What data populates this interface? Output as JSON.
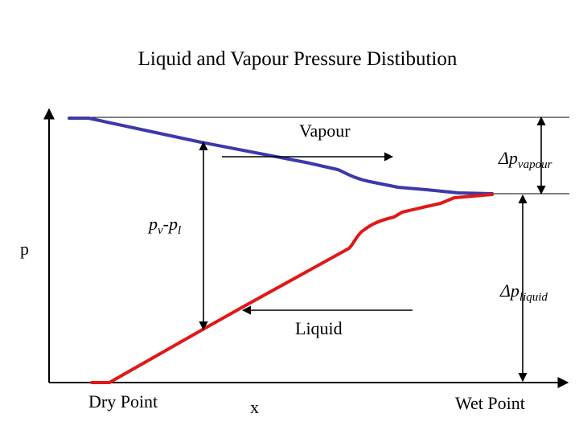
{
  "title": "Liquid and Vapour Pressure Distibution",
  "axes": {
    "y_label": "p",
    "x_label": "x"
  },
  "labels": {
    "vapour": "Vapour",
    "liquid": "Liquid",
    "dry_point": "Dry Point",
    "wet_point": "Wet Point"
  },
  "deltas": {
    "vapour_symbol": "Δp",
    "vapour_sub": "vapour",
    "liquid_symbol": "Δp",
    "liquid_sub": "liquid"
  },
  "pressure_diff": {
    "pv": "p",
    "pv_sub": "v",
    "minus": "-",
    "pl": "p",
    "pl_sub": "l"
  },
  "colors": {
    "vapour_curve": "#3a3aaa",
    "liquid_curve": "#e01818",
    "axis": "#000000",
    "guide": "#000000"
  }
}
